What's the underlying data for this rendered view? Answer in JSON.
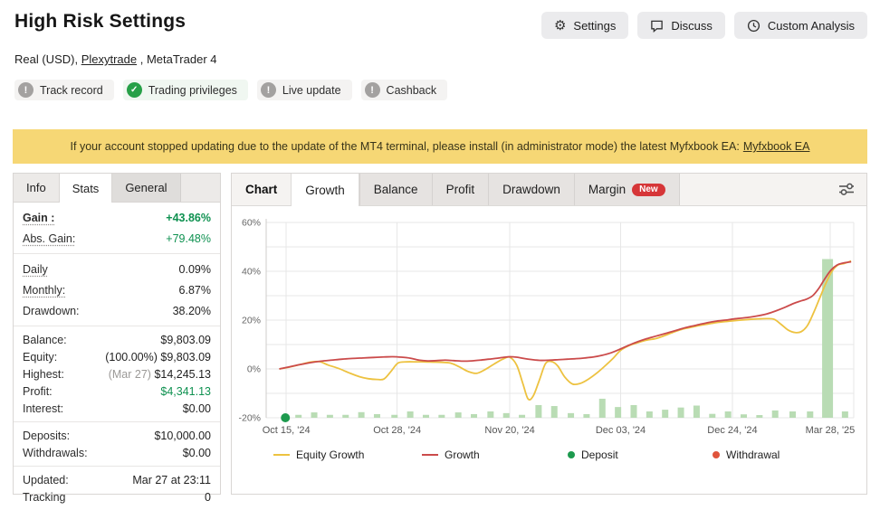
{
  "header": {
    "title": "High Risk Settings",
    "buttons": [
      {
        "label": "Settings",
        "icon": "gear-icon"
      },
      {
        "label": "Discuss",
        "icon": "speech-bubble-icon"
      },
      {
        "label": "Custom Analysis",
        "icon": "clock-icon"
      }
    ],
    "subtitle": {
      "prefix": "Real (USD), ",
      "link": "Plexytrade",
      "suffix": " , MetaTrader 4"
    },
    "badges": [
      {
        "label": "Track record",
        "status": "info"
      },
      {
        "label": "Trading privileges",
        "status": "ok"
      },
      {
        "label": "Live update",
        "status": "info"
      },
      {
        "label": "Cashback",
        "status": "info"
      }
    ]
  },
  "banner": {
    "text": "If your account stopped updating due to the update of the MT4 terminal, please install (in administrator mode) the latest Myfxbook EA:",
    "link": "Myfxbook EA"
  },
  "sidebar": {
    "tabs": [
      {
        "label": "Info",
        "active": false
      },
      {
        "label": "Stats",
        "active": true
      },
      {
        "label": "General",
        "active": false
      }
    ],
    "stats": {
      "gain": {
        "label": "Gain :",
        "value": "+43.86%"
      },
      "abs_gain": {
        "label": "Abs. Gain:",
        "value": "+79.48%"
      },
      "daily": {
        "label": "Daily",
        "value": "0.09%"
      },
      "monthly": {
        "label": "Monthly:",
        "value": "6.87%"
      },
      "drawdown": {
        "label": "Drawdown:",
        "value": "38.20%"
      },
      "balance": {
        "label": "Balance:",
        "value": "$9,803.09"
      },
      "equity": {
        "label": "Equity:",
        "prefix": "(100.00%) ",
        "value": "$9,803.09"
      },
      "highest": {
        "label": "Highest:",
        "prefix": "(Mar 27) ",
        "value": "$14,245.13"
      },
      "profit": {
        "label": "Profit:",
        "value": "$4,341.13"
      },
      "interest": {
        "label": "Interest:",
        "value": "$0.00"
      },
      "deposits": {
        "label": "Deposits:",
        "value": "$10,000.00"
      },
      "withdrawals": {
        "label": "Withdrawals:",
        "value": "$0.00"
      },
      "updated": {
        "label": "Updated:",
        "value": "Mar 27 at 23:11"
      },
      "tracking": {
        "label": "Tracking",
        "value": "0"
      }
    }
  },
  "chart_panel": {
    "tabs": [
      {
        "label": "Chart"
      },
      {
        "label": "Growth",
        "active": true
      },
      {
        "label": "Balance"
      },
      {
        "label": "Profit"
      },
      {
        "label": "Drawdown"
      },
      {
        "label": "Margin",
        "badge": "New"
      }
    ]
  },
  "chart_data": {
    "type": "line",
    "title": "",
    "xlabel": "",
    "ylabel": "",
    "ylim": [
      -20,
      60
    ],
    "grid": true,
    "legend_position": "bottom",
    "y_gridlines": [
      60,
      50,
      40,
      30,
      20,
      10,
      0,
      -10,
      -20
    ],
    "y_ticks": [
      {
        "pct": 60,
        "label": "60%"
      },
      {
        "pct": 40,
        "label": "40%"
      },
      {
        "pct": 20,
        "label": "20%"
      },
      {
        "pct": 0,
        "label": "0%"
      },
      {
        "pct": -20,
        "label": "-20%"
      }
    ],
    "x_ticks": [
      {
        "pos": 308,
        "label": "Oct 15, '24"
      },
      {
        "pos": 435,
        "label": "Oct 28, '24"
      },
      {
        "pos": 564,
        "label": "Nov 20, '24"
      },
      {
        "pos": 691,
        "label": "Dec 03, '24"
      },
      {
        "pos": 819,
        "label": "Dec 24, '24"
      },
      {
        "pos": 931,
        "label": "Mar 28, '25"
      }
    ],
    "plot_x_range": [
      285,
      958
    ],
    "series": [
      {
        "name": "Equity Growth",
        "color": "#edc240",
        "points": [
          [
            300,
            0
          ],
          [
            312,
            0.8
          ],
          [
            324,
            1.8
          ],
          [
            336,
            2.8
          ],
          [
            346,
            3.0
          ],
          [
            356,
            1.6
          ],
          [
            368,
            0.2
          ],
          [
            380,
            -1.6
          ],
          [
            392,
            -3.2
          ],
          [
            402,
            -4.0
          ],
          [
            412,
            -4.3
          ],
          [
            420,
            -4.1
          ],
          [
            428,
            -1.0
          ],
          [
            436,
            2.4
          ],
          [
            446,
            2.9
          ],
          [
            456,
            2.9
          ],
          [
            466,
            2.9
          ],
          [
            476,
            2.8
          ],
          [
            486,
            2.7
          ],
          [
            496,
            2.4
          ],
          [
            506,
            0.9
          ],
          [
            516,
            -1.0
          ],
          [
            526,
            -1.8
          ],
          [
            536,
            -0.2
          ],
          [
            546,
            2.0
          ],
          [
            556,
            4.0
          ],
          [
            564,
            4.8
          ],
          [
            572,
            1.5
          ],
          [
            579,
            -6.0
          ],
          [
            585,
            -12.3
          ],
          [
            591,
            -11.0
          ],
          [
            598,
            -4.5
          ],
          [
            605,
            2.2
          ],
          [
            612,
            3.0
          ],
          [
            619,
            1.2
          ],
          [
            627,
            -3.3
          ],
          [
            636,
            -6.2
          ],
          [
            645,
            -5.9
          ],
          [
            654,
            -4.2
          ],
          [
            664,
            -1.6
          ],
          [
            673,
            1.2
          ],
          [
            682,
            4.2
          ],
          [
            691,
            7.6
          ],
          [
            701,
            9.6
          ],
          [
            711,
            10.8
          ],
          [
            721,
            11.8
          ],
          [
            731,
            12.4
          ],
          [
            741,
            13.6
          ],
          [
            751,
            15.0
          ],
          [
            761,
            16.2
          ],
          [
            771,
            17.0
          ],
          [
            781,
            17.8
          ],
          [
            791,
            18.4
          ],
          [
            801,
            19.0
          ],
          [
            811,
            19.4
          ],
          [
            819,
            19.7
          ],
          [
            829,
            20.0
          ],
          [
            839,
            20.3
          ],
          [
            849,
            20.5
          ],
          [
            859,
            20.6
          ],
          [
            867,
            20.3
          ],
          [
            875,
            18.2
          ],
          [
            883,
            15.9
          ],
          [
            891,
            14.9
          ],
          [
            898,
            15.3
          ],
          [
            905,
            17.8
          ],
          [
            912,
            23.0
          ],
          [
            919,
            29.0
          ],
          [
            926,
            35.0
          ],
          [
            933,
            40.0
          ],
          [
            940,
            42.6
          ],
          [
            947,
            43.2
          ],
          [
            955,
            44.2
          ]
        ]
      },
      {
        "name": "Growth",
        "color": "#cb4b4b",
        "points": [
          [
            300,
            0
          ],
          [
            312,
            0.9
          ],
          [
            324,
            1.8
          ],
          [
            336,
            2.6
          ],
          [
            348,
            3.2
          ],
          [
            360,
            3.6
          ],
          [
            372,
            4.0
          ],
          [
            384,
            4.3
          ],
          [
            396,
            4.5
          ],
          [
            408,
            4.7
          ],
          [
            420,
            4.9
          ],
          [
            430,
            5.0
          ],
          [
            440,
            4.8
          ],
          [
            450,
            4.4
          ],
          [
            460,
            3.6
          ],
          [
            470,
            3.3
          ],
          [
            480,
            3.4
          ],
          [
            490,
            3.6
          ],
          [
            500,
            3.4
          ],
          [
            510,
            3.2
          ],
          [
            520,
            3.3
          ],
          [
            530,
            3.6
          ],
          [
            540,
            4.0
          ],
          [
            550,
            4.4
          ],
          [
            558,
            4.8
          ],
          [
            564,
            5.0
          ],
          [
            572,
            4.8
          ],
          [
            580,
            4.3
          ],
          [
            590,
            3.8
          ],
          [
            600,
            3.5
          ],
          [
            610,
            3.6
          ],
          [
            620,
            3.8
          ],
          [
            630,
            4.0
          ],
          [
            640,
            4.2
          ],
          [
            650,
            4.5
          ],
          [
            660,
            4.9
          ],
          [
            670,
            5.6
          ],
          [
            680,
            6.6
          ],
          [
            691,
            8.2
          ],
          [
            701,
            9.8
          ],
          [
            711,
            11.2
          ],
          [
            721,
            12.4
          ],
          [
            731,
            13.4
          ],
          [
            741,
            14.4
          ],
          [
            751,
            15.4
          ],
          [
            761,
            16.5
          ],
          [
            771,
            17.4
          ],
          [
            781,
            18.2
          ],
          [
            791,
            19.0
          ],
          [
            801,
            19.6
          ],
          [
            811,
            20.0
          ],
          [
            819,
            20.4
          ],
          [
            829,
            20.8
          ],
          [
            839,
            21.2
          ],
          [
            849,
            21.8
          ],
          [
            859,
            22.6
          ],
          [
            869,
            23.8
          ],
          [
            879,
            25.2
          ],
          [
            889,
            26.8
          ],
          [
            897,
            27.8
          ],
          [
            904,
            28.6
          ],
          [
            911,
            30.0
          ],
          [
            918,
            33.0
          ],
          [
            925,
            37.0
          ],
          [
            932,
            40.5
          ],
          [
            939,
            42.6
          ],
          [
            946,
            43.4
          ],
          [
            955,
            43.9
          ]
        ]
      }
    ],
    "deposit_bars": {
      "color": "#b9dcb4",
      "baseline_pct": -20,
      "bars": [
        [
          322,
          1.2
        ],
        [
          340,
          2.2
        ],
        [
          358,
          1.2
        ],
        [
          376,
          1.2
        ],
        [
          394,
          2.3
        ],
        [
          412,
          1.5
        ],
        [
          432,
          1.2
        ],
        [
          450,
          2.6
        ],
        [
          468,
          1.2
        ],
        [
          486,
          1.2
        ],
        [
          505,
          2.2
        ],
        [
          523,
          1.5
        ],
        [
          542,
          2.6
        ],
        [
          560,
          1.9
        ],
        [
          578,
          1.2
        ],
        [
          597,
          5.2
        ],
        [
          615,
          4.8
        ],
        [
          634,
          1.9
        ],
        [
          652,
          1.5
        ],
        [
          670,
          7.8
        ],
        [
          688,
          4.4
        ],
        [
          706,
          5.2
        ],
        [
          724,
          2.6
        ],
        [
          742,
          3.3
        ],
        [
          760,
          4.2
        ],
        [
          778,
          5.0
        ],
        [
          796,
          1.6
        ],
        [
          814,
          2.6
        ],
        [
          832,
          1.4
        ],
        [
          850,
          1.1
        ],
        [
          868,
          3.0
        ],
        [
          888,
          2.6
        ],
        [
          908,
          2.6
        ],
        [
          928,
          65
        ],
        [
          948,
          2.6
        ]
      ]
    },
    "markers": [
      {
        "type": "deposit",
        "x": 307,
        "pct": -20,
        "color": "#1d9a4e"
      }
    ],
    "legend": [
      {
        "label": "Equity Growth",
        "swatch": "line",
        "color": "#edc240"
      },
      {
        "label": "Growth",
        "swatch": "line",
        "color": "#cb4b4b"
      },
      {
        "label": "Deposit",
        "swatch": "dot",
        "color": "#1d9a4e"
      },
      {
        "label": "Withdrawal",
        "swatch": "dot",
        "color": "#e0543c"
      }
    ]
  }
}
